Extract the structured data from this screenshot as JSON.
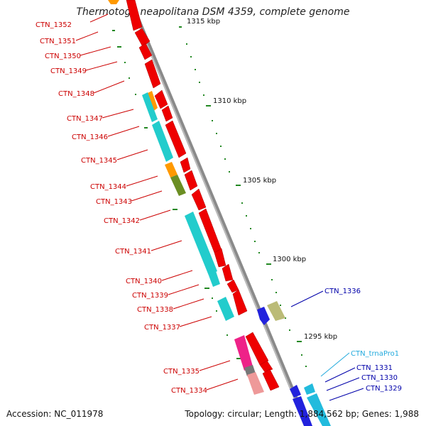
{
  "title": "Thermotoga neapolitana DSM 4359, complete genome",
  "accession": "Accession: NC_011978",
  "summary": "Topology: circular; Length: 1,884,562 bp; Genes: 1,988",
  "colors": {
    "backbone": "#888888",
    "cds": "#ff0000",
    "label_red": "#cc0000",
    "label_blue": "#0000aa",
    "label_cyan": "#22aadd",
    "tick": "#228822"
  },
  "scale_labels": [
    "1315 kbp",
    "1310 kbp",
    "1305 kbp",
    "1300 kbp",
    "1295 kbp"
  ],
  "genes_left": [
    "CTN_1352",
    "CTN_1351",
    "CTN_1350",
    "CTN_1349",
    "CTN_1348",
    "CTN_1347",
    "CTN_1346",
    "CTN_1345",
    "CTN_1344",
    "CTN_1343",
    "CTN_1342",
    "CTN_1341",
    "CTN_1340",
    "CTN_1339",
    "CTN_1338",
    "CTN_1337",
    "CTN_1335",
    "CTN_1334"
  ],
  "genes_right": [
    "CTN_1336",
    "CTN_trnaPro1",
    "CTN_1331",
    "CTN_1330",
    "CTN_1329"
  ]
}
